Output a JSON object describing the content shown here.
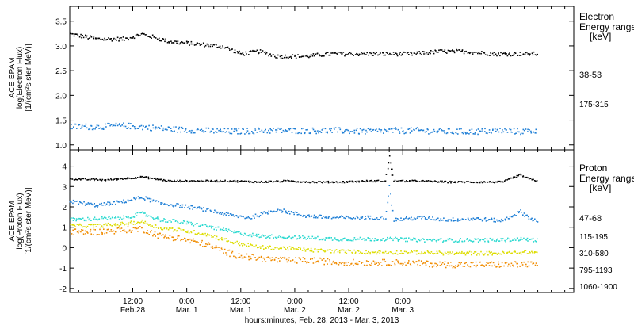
{
  "xaxis": {
    "title": "hours:minutes, Feb. 28, 2013 - Mar. 3, 2013",
    "tick_times": [
      "12:00",
      "0:00",
      "12:00",
      "0:00",
      "12:00",
      "0:00"
    ],
    "tick_dates": [
      "Feb.28",
      "Mar. 1",
      "Mar. 1",
      "Mar. 2",
      "Mar. 2",
      "Mar. 3"
    ]
  },
  "electron_panel": {
    "ylabel_line1": "ACE EPAM",
    "ylabel_line2": "log(Electron Flux)",
    "ylabel_line3": "[1/(cm²s ster MeV)]",
    "legend_title_line1": "Electron",
    "legend_title_line2": "Energy ranges",
    "legend_unit": "[keV]",
    "yticks": [
      "1.0",
      "1.5",
      "2.0",
      "2.5",
      "3.0",
      "3.5"
    ]
  },
  "proton_panel": {
    "ylabel_line1": "ACE EPAM",
    "ylabel_line2": "log(Proton Flux)",
    "ylabel_line3": "[1/(cm²s ster MeV)]",
    "legend_title_line1": "Proton",
    "legend_title_line2": "Energy ranges",
    "legend_unit": "[keV]",
    "yticks": [
      "-2",
      "-1",
      "0",
      "1",
      "2",
      "3",
      "4"
    ]
  },
  "chart_data": [
    {
      "type": "scatter",
      "title": "",
      "xlabel": "hours:minutes, Feb. 28, 2013 - Mar. 3, 2013",
      "ylabel": "log(Electron Flux) [1/(cm²s ster MeV)]",
      "x_unit": "hours since 2013-02-28 00:00",
      "xlim": [
        -2,
        110
      ],
      "ylim": [
        0.9,
        3.8
      ],
      "grid": false,
      "legend_position": "right",
      "series": [
        {
          "name": "38-53",
          "color": "#000000",
          "x": [
            -2,
            4,
            10,
            14,
            16,
            20,
            26,
            32,
            36,
            40,
            44,
            50,
            56,
            62,
            68,
            74,
            80,
            86,
            92,
            98,
            102
          ],
          "y": [
            3.25,
            3.15,
            3.15,
            3.25,
            3.2,
            3.1,
            3.05,
            3.0,
            2.85,
            2.9,
            2.8,
            2.8,
            2.85,
            2.85,
            2.85,
            2.85,
            2.9,
            2.9,
            2.85,
            2.85,
            2.85
          ]
        },
        {
          "name": "175-315",
          "color": "#1f7fd6",
          "x": [
            -2,
            4,
            10,
            16,
            22,
            28,
            34,
            40,
            46,
            52,
            58,
            64,
            70,
            76,
            82,
            88,
            94,
            98,
            102
          ],
          "y": [
            1.38,
            1.38,
            1.4,
            1.36,
            1.32,
            1.3,
            1.28,
            1.3,
            1.3,
            1.3,
            1.3,
            1.28,
            1.3,
            1.3,
            1.28,
            1.28,
            1.3,
            1.28,
            1.3
          ]
        }
      ]
    },
    {
      "type": "scatter",
      "title": "",
      "xlabel": "hours:minutes, Feb. 28, 2013 - Mar. 3, 2013",
      "ylabel": "log(Proton Flux) [1/(cm²s ster MeV)]",
      "x_unit": "hours since 2013-02-28 00:00",
      "xlim": [
        -2,
        110
      ],
      "ylim": [
        -2.2,
        4.8
      ],
      "grid": false,
      "legend_position": "right",
      "series": [
        {
          "name": "47-68",
          "color": "#000000",
          "x": [
            -2,
            6,
            14,
            20,
            28,
            34,
            40,
            46,
            52,
            58,
            64,
            68,
            69,
            70,
            76,
            82,
            88,
            94,
            98,
            100,
            102
          ],
          "y": [
            3.4,
            3.35,
            3.5,
            3.3,
            3.3,
            3.3,
            3.25,
            3.3,
            3.25,
            3.25,
            3.3,
            3.3,
            4.5,
            3.3,
            3.3,
            3.25,
            3.25,
            3.25,
            3.6,
            3.4,
            3.3
          ]
        },
        {
          "name": "115-195",
          "color": "#1f7fd6",
          "x": [
            -2,
            4,
            10,
            14,
            18,
            22,
            28,
            34,
            38,
            44,
            50,
            56,
            62,
            68,
            69,
            70,
            76,
            82,
            88,
            94,
            98,
            100,
            102
          ],
          "y": [
            2.3,
            2.1,
            2.3,
            2.5,
            2.2,
            2.1,
            1.9,
            1.6,
            1.5,
            1.9,
            1.6,
            1.5,
            1.5,
            1.5,
            3.0,
            1.4,
            1.5,
            1.4,
            1.45,
            1.35,
            1.8,
            1.5,
            1.3
          ]
        },
        {
          "name": "310-580",
          "color": "#2bd9d0",
          "x": [
            -2,
            4,
            10,
            14,
            18,
            22,
            28,
            34,
            40,
            46,
            52,
            58,
            64,
            70,
            76,
            82,
            88,
            94,
            98,
            102
          ],
          "y": [
            1.4,
            1.45,
            1.5,
            1.7,
            1.4,
            1.3,
            1.1,
            0.8,
            0.6,
            0.55,
            0.5,
            0.45,
            0.45,
            0.45,
            0.4,
            0.4,
            0.4,
            0.4,
            0.45,
            0.4
          ]
        },
        {
          "name": "795-1193",
          "color": "#dddd00",
          "x": [
            -2,
            4,
            10,
            14,
            18,
            22,
            28,
            34,
            40,
            46,
            52,
            58,
            64,
            70,
            76,
            82,
            88,
            94,
            98,
            102
          ],
          "y": [
            1.1,
            1.1,
            1.2,
            1.3,
            1.0,
            0.9,
            0.7,
            0.3,
            0.05,
            0.0,
            -0.1,
            -0.15,
            -0.2,
            -0.2,
            -0.2,
            -0.25,
            -0.25,
            -0.25,
            -0.2,
            -0.2
          ]
        },
        {
          "name": "1060-1900",
          "color": "#f08c00",
          "x": [
            -2,
            4,
            10,
            14,
            18,
            22,
            28,
            34,
            40,
            46,
            52,
            58,
            64,
            70,
            76,
            82,
            88,
            94,
            98,
            102
          ],
          "y": [
            0.8,
            0.8,
            0.9,
            0.95,
            0.6,
            0.5,
            0.2,
            -0.3,
            -0.5,
            -0.6,
            -0.6,
            -0.7,
            -0.7,
            -0.7,
            -0.75,
            -0.8,
            -0.8,
            -0.8,
            -0.8,
            -0.8
          ]
        }
      ]
    }
  ]
}
